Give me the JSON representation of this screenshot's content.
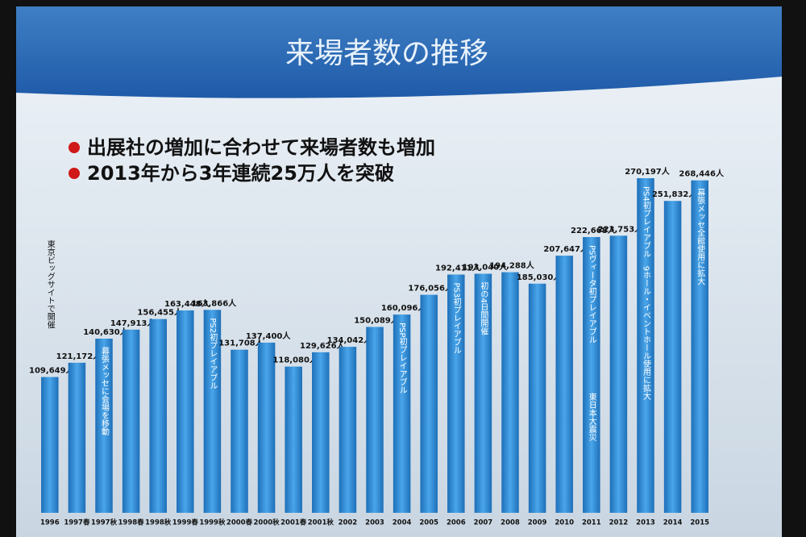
{
  "chart_data": {
    "type": "bar",
    "title": "来場者数の推移",
    "bullets": [
      "出展社の増加に合わせて来場者数も増加",
      "2013年から3年連続25万人を突破"
    ],
    "categories": [
      "1996",
      "1997春",
      "1997秋",
      "1998春",
      "1998秋",
      "1999春",
      "1999秋",
      "2000春",
      "2000秋",
      "2001春",
      "2001秋",
      "2002",
      "2003",
      "2004",
      "2005",
      "2006",
      "2007",
      "2008",
      "2009",
      "2010",
      "2011",
      "2012",
      "2013",
      "2014",
      "2015"
    ],
    "values": [
      109649,
      121172,
      140630,
      147913,
      156455,
      163448,
      163866,
      131708,
      137400,
      118080,
      129626,
      134042,
      150089,
      160096,
      176056,
      192411,
      193040,
      194288,
      185030,
      207647,
      222668,
      223753,
      270197,
      251832,
      268446
    ],
    "value_labels": [
      "109,649人",
      "121,172人",
      "140,630人",
      "147,913人",
      "156,455人",
      "163,448人",
      "163,866人",
      "131,708人",
      "137,400人",
      "118,080人",
      "129,626人",
      "134,042人",
      "150,089人",
      "160,096人",
      "176,056人",
      "192,411人",
      "193,040人",
      "194,288人",
      "185,030人",
      "207,647人",
      "222,668人",
      "223,753人",
      "270,197人",
      "251,832人",
      "268,446人"
    ],
    "bar_notes": [
      [
        "東京ビッグサイトで開催"
      ],
      null,
      [
        "幕張メッセに会場を移動"
      ],
      null,
      null,
      null,
      [
        "PS2初プレイアブル"
      ],
      null,
      null,
      null,
      null,
      null,
      null,
      [
        "PSP初プレイアブル"
      ],
      null,
      [
        "PS3初プレイアブル"
      ],
      [
        "初の4日間開催"
      ],
      null,
      null,
      null,
      [
        "PSヴィータ初プレイアブル",
        "東日本大震災"
      ],
      null,
      [
        "PS4初プレイアブル　9ホール・イベントホール使用に拡大"
      ],
      null,
      [
        "幕張メッセ全館使用に拡大"
      ]
    ],
    "color": "#2a8fd8"
  }
}
